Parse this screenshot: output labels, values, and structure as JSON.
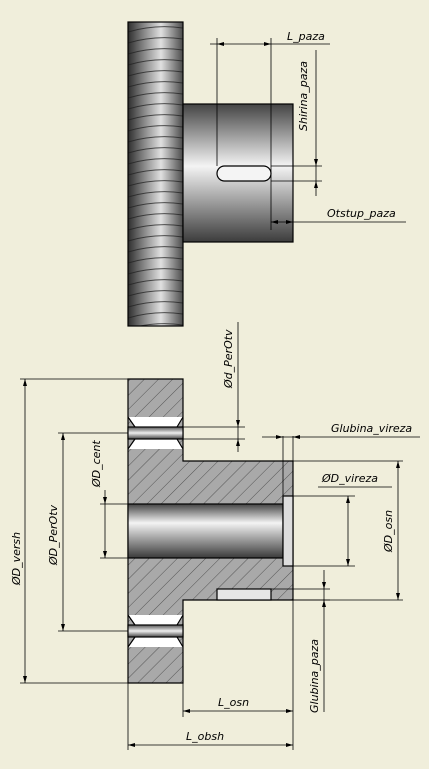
{
  "labels": {
    "l_paza": "L_paza",
    "shirina_paza": "Shirina_paza",
    "otstup_paza": "Otstup_paza",
    "d_perotv_small": "Ød_PerOtv",
    "glubina_vireza": "Glubina_vireza",
    "d_cent": "ØD_cent",
    "d_vireza": "ØD_vireza",
    "d_versh": "ØD_versh",
    "d_perotv": "ØD_PerOtv",
    "d_osn": "ØD_osn",
    "glubina_paza": "Glubina_paza",
    "l_osn": "L_osn",
    "l_obsh": "L_obsh"
  },
  "colors": {
    "background": "#f0eedb",
    "hatch": "#555555",
    "section_fill": "#a9a9a9",
    "shaft_dark": "#3a3a3a",
    "shaft_light": "#f2f2f2"
  }
}
